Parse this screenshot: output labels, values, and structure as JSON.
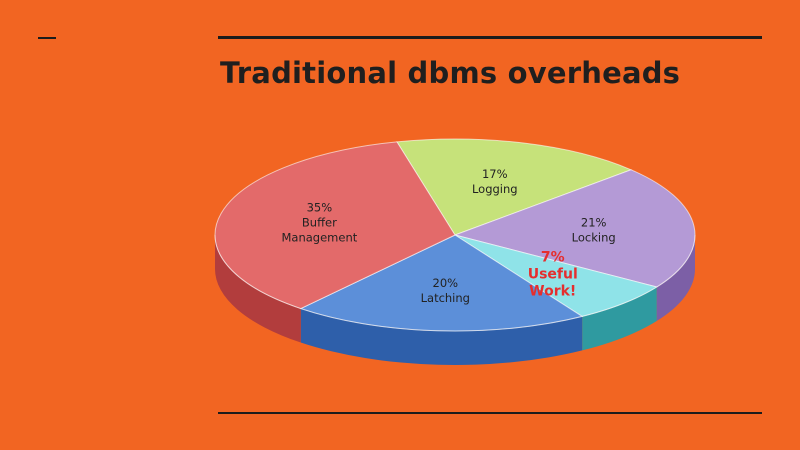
{
  "slide": {
    "title": "Traditional dbms overheads"
  },
  "chart_data": {
    "type": "pie",
    "title": "",
    "slices": [
      {
        "pct_label": "17%",
        "name_lines": [
          "Logging"
        ],
        "value": 17,
        "color": "#C6E27A",
        "side": "#8FAF4C",
        "highlight": false
      },
      {
        "pct_label": "21%",
        "name_lines": [
          "Locking"
        ],
        "value": 21,
        "color": "#B49AD6",
        "side": "#7C5FA6",
        "highlight": false
      },
      {
        "pct_label": "7%",
        "name_lines": [
          "Useful",
          "Work!"
        ],
        "value": 7,
        "color": "#8FE3E8",
        "side": "#2F9AA0",
        "highlight": true
      },
      {
        "pct_label": "20%",
        "name_lines": [
          "Latching"
        ],
        "value": 20,
        "color": "#5C8FD9",
        "side": "#2E5FAA",
        "highlight": false
      },
      {
        "pct_label": "35%",
        "name_lines": [
          "Buffer",
          "Management"
        ],
        "value": 35,
        "color": "#E36A6A",
        "side": "#B23D3D",
        "highlight": false
      }
    ]
  }
}
